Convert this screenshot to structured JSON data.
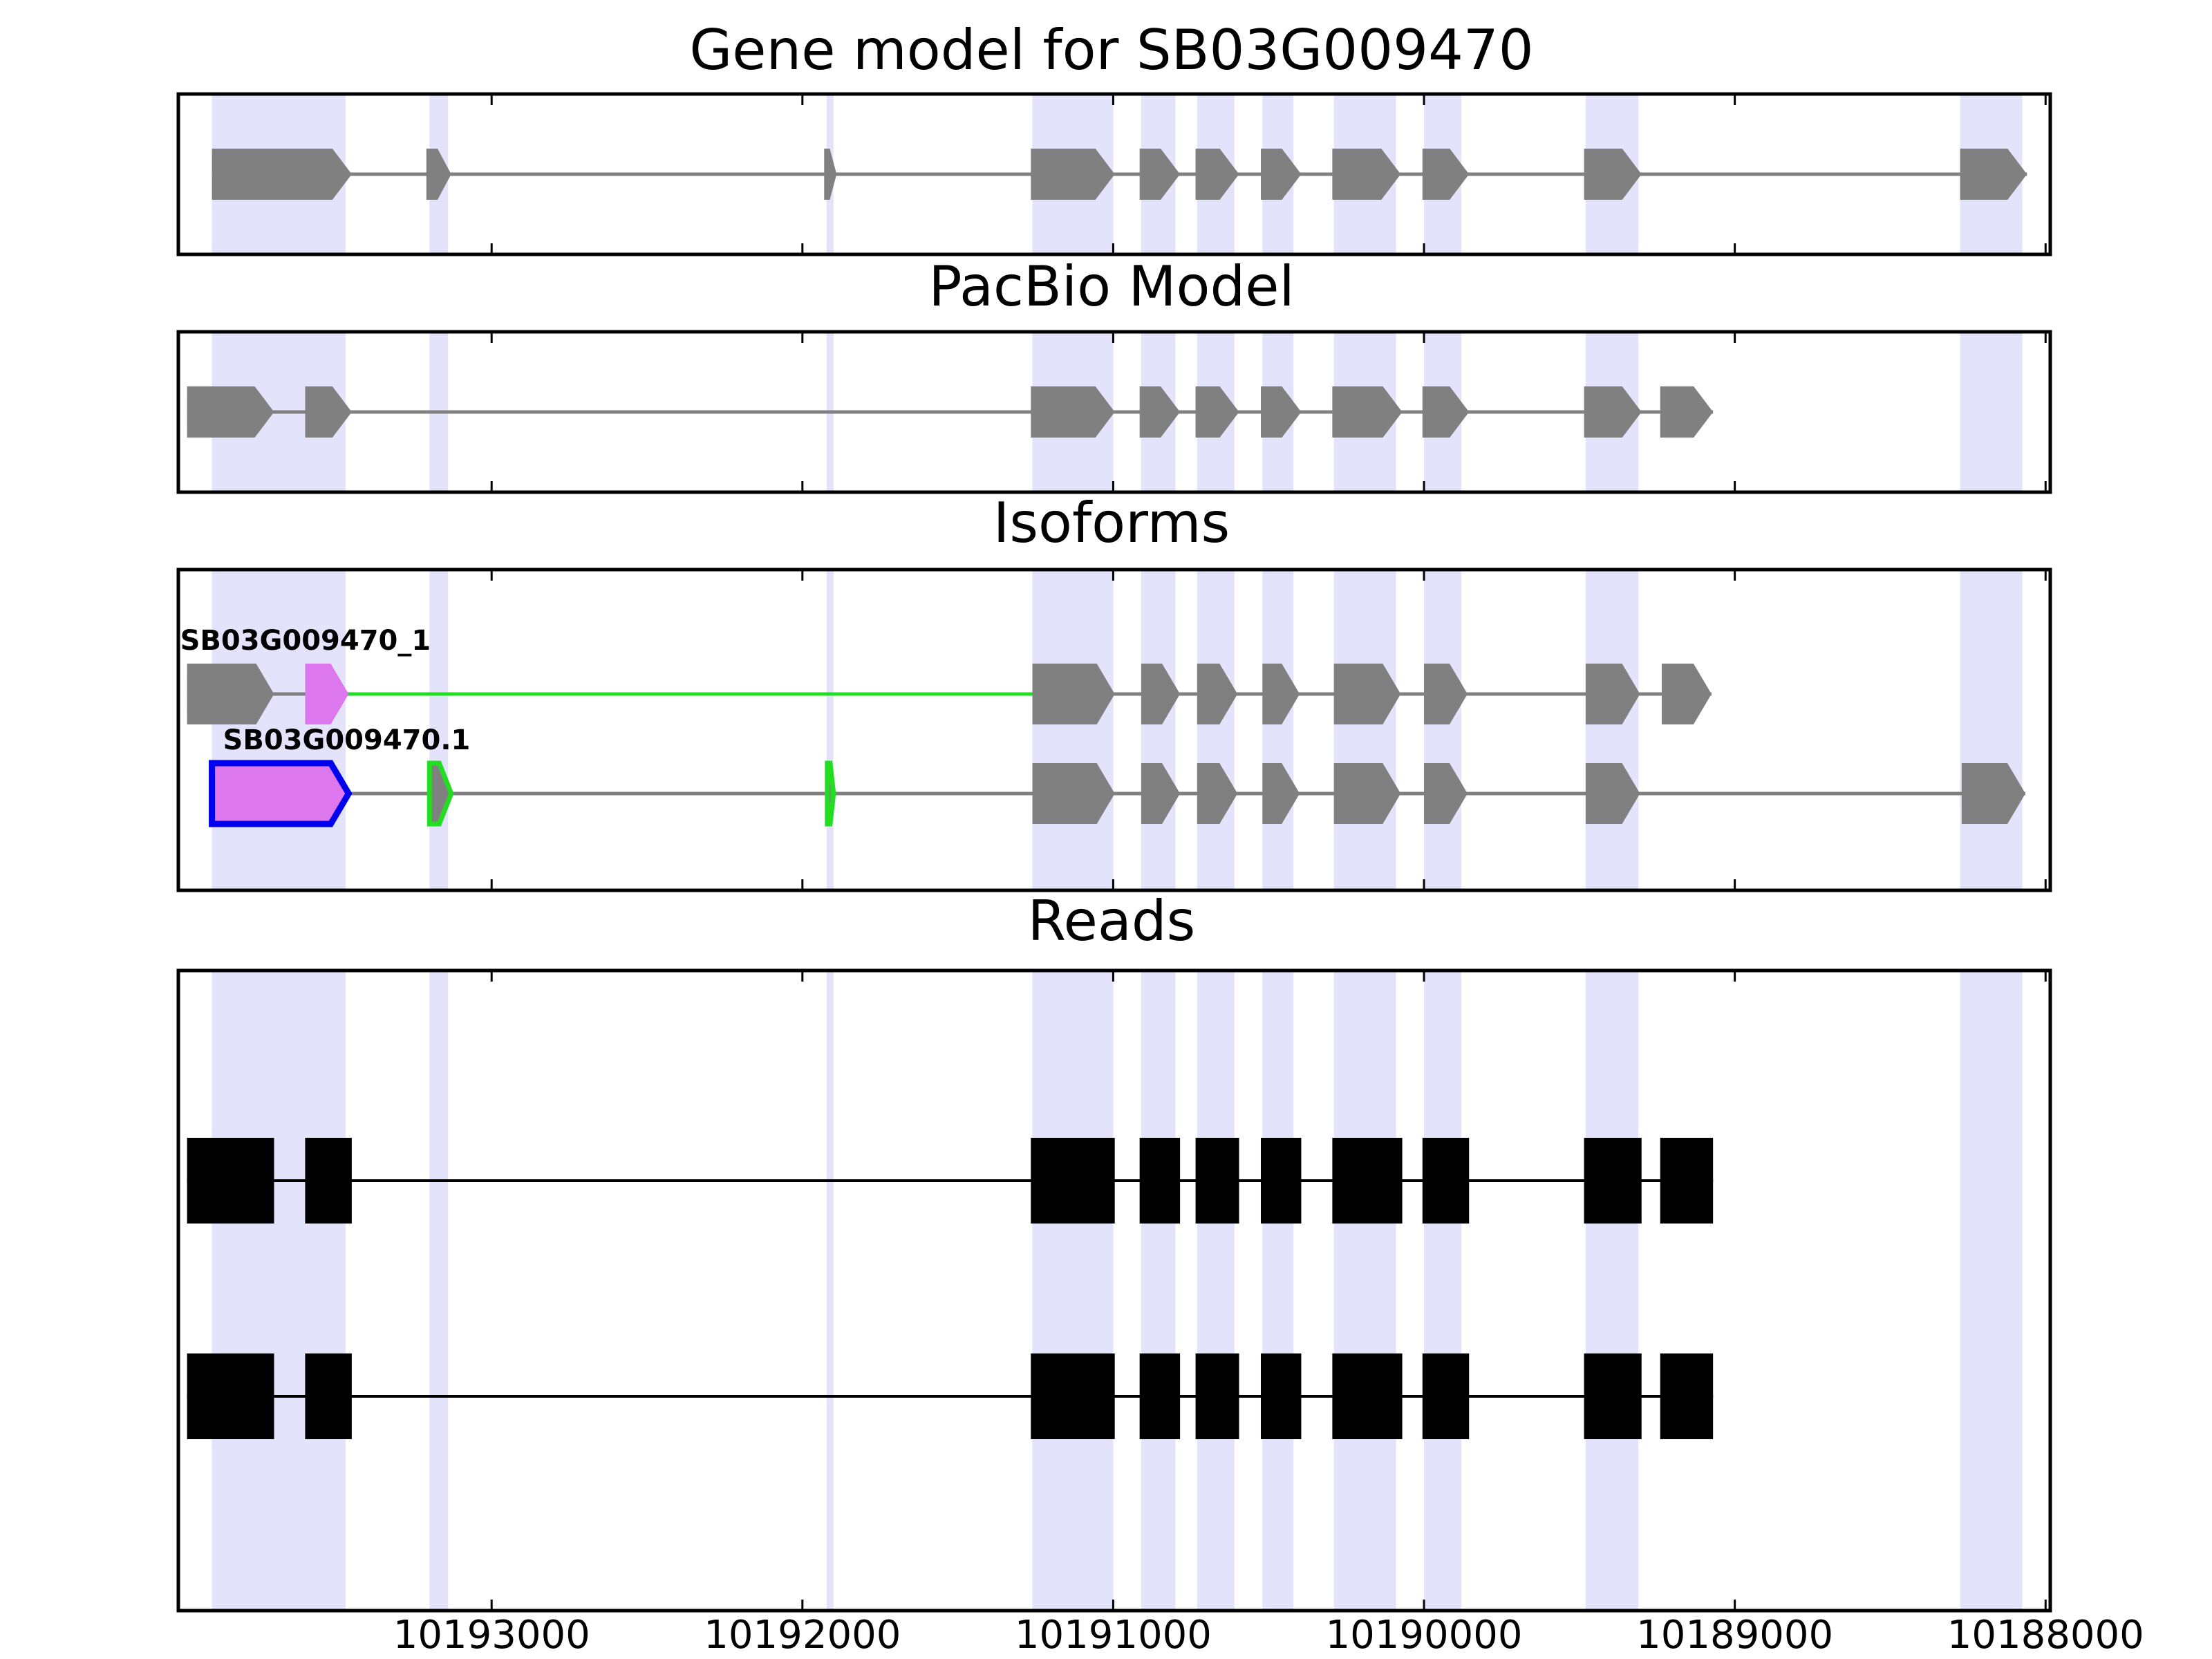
{
  "chart_data": {
    "type": "gene-track",
    "x_axis": {
      "lim": [
        10194008,
        10187985
      ],
      "reversed": true,
      "ticks": [
        10193000,
        10192000,
        10191000,
        10190000,
        10189000,
        10188000
      ],
      "tick_labels": [
        "10193000",
        "10192000",
        "10191000",
        "10190000",
        "10189000",
        "10188000"
      ]
    },
    "colors": {
      "highlight": "#e3e3fb",
      "exon": "#808080",
      "intron": "#808080",
      "read": "#000000",
      "alt_splice": "#22dd22",
      "alt_exon_fill": "#dd77ee",
      "alt_exon_outline": "#0000ee"
    },
    "highlight_regions": [
      [
        10193900,
        10193470
      ],
      [
        10193200,
        10193140
      ],
      [
        10191922,
        10191900
      ],
      [
        10191260,
        10191000
      ],
      [
        10190910,
        10190800
      ],
      [
        10190730,
        10190610
      ],
      [
        10190520,
        10190420
      ],
      [
        10190290,
        10190090
      ],
      [
        10190000,
        10189880
      ],
      [
        10189480,
        10189310
      ],
      [
        10188275,
        10188075
      ]
    ],
    "panels": [
      {
        "key": "gene_model",
        "title": "Gene model for SB03G009470",
        "tracks": [
          {
            "label": "",
            "exons": [
              {
                "start": 10193900,
                "end": 10193450
              },
              {
                "start": 10193210,
                "end": 10193130
              },
              {
                "start": 10191930,
                "end": 10191890
              },
              {
                "start": 10191265,
                "end": 10190995
              },
              {
                "start": 10190915,
                "end": 10190785
              },
              {
                "start": 10190735,
                "end": 10190595
              },
              {
                "start": 10190525,
                "end": 10190395
              },
              {
                "start": 10190295,
                "end": 10190075
              },
              {
                "start": 10190005,
                "end": 10189855
              },
              {
                "start": 10189485,
                "end": 10189300
              },
              {
                "start": 10188275,
                "end": 10188060
              }
            ]
          }
        ]
      },
      {
        "key": "pacbio_model",
        "title": "PacBio Model",
        "tracks": [
          {
            "label": "",
            "exons": [
              {
                "start": 10193980,
                "end": 10193700
              },
              {
                "start": 10193600,
                "end": 10193450
              },
              {
                "start": 10191265,
                "end": 10190995
              },
              {
                "start": 10190915,
                "end": 10190785
              },
              {
                "start": 10190735,
                "end": 10190595
              },
              {
                "start": 10190525,
                "end": 10190395
              },
              {
                "start": 10190295,
                "end": 10190070
              },
              {
                "start": 10190005,
                "end": 10189855
              },
              {
                "start": 10189485,
                "end": 10189300
              },
              {
                "start": 10189240,
                "end": 10189070
              }
            ]
          }
        ]
      },
      {
        "key": "isoforms",
        "title": "Isoforms",
        "tracks": [
          {
            "label": "SB03G009470_1",
            "exons": [
              {
                "start": 10193980,
                "end": 10193700
              },
              {
                "start": 10193600,
                "end": 10193460,
                "style": "alt"
              },
              {
                "start": 10191260,
                "end": 10190995
              },
              {
                "start": 10190910,
                "end": 10190785
              },
              {
                "start": 10190730,
                "end": 10190600
              },
              {
                "start": 10190520,
                "end": 10190400
              },
              {
                "start": 10190290,
                "end": 10190075
              },
              {
                "start": 10190000,
                "end": 10189860
              },
              {
                "start": 10189480,
                "end": 10189305
              },
              {
                "start": 10189235,
                "end": 10189075
              }
            ],
            "alt_introns": [
              [
                10193460,
                10191260
              ]
            ]
          },
          {
            "label": "SB03G009470.1",
            "exons": [
              {
                "start": 10193900,
                "end": 10193460,
                "style": "alt-outline"
              },
              {
                "start": 10193200,
                "end": 10193130,
                "style": "green"
              },
              {
                "start": 10191920,
                "end": 10191900,
                "style": "green"
              },
              {
                "start": 10191260,
                "end": 10190995
              },
              {
                "start": 10190910,
                "end": 10190785
              },
              {
                "start": 10190730,
                "end": 10190600
              },
              {
                "start": 10190520,
                "end": 10190400
              },
              {
                "start": 10190290,
                "end": 10190075
              },
              {
                "start": 10190000,
                "end": 10189860
              },
              {
                "start": 10189480,
                "end": 10189305
              },
              {
                "start": 10188270,
                "end": 10188065
              }
            ],
            "alt_introns": []
          }
        ]
      },
      {
        "key": "reads",
        "title": "Reads",
        "tracks": [
          {
            "label": "",
            "exons": [
              {
                "start": 10193980,
                "end": 10193700
              },
              {
                "start": 10193600,
                "end": 10193450
              },
              {
                "start": 10191265,
                "end": 10190995
              },
              {
                "start": 10190915,
                "end": 10190785
              },
              {
                "start": 10190735,
                "end": 10190595
              },
              {
                "start": 10190525,
                "end": 10190395
              },
              {
                "start": 10190295,
                "end": 10190070
              },
              {
                "start": 10190005,
                "end": 10189855
              },
              {
                "start": 10189485,
                "end": 10189300
              },
              {
                "start": 10189240,
                "end": 10189070
              }
            ]
          },
          {
            "label": "",
            "exons": [
              {
                "start": 10193980,
                "end": 10193700
              },
              {
                "start": 10193600,
                "end": 10193450
              },
              {
                "start": 10191265,
                "end": 10190995
              },
              {
                "start": 10190915,
                "end": 10190785
              },
              {
                "start": 10190735,
                "end": 10190595
              },
              {
                "start": 10190525,
                "end": 10190395
              },
              {
                "start": 10190295,
                "end": 10190070
              },
              {
                "start": 10190005,
                "end": 10189855
              },
              {
                "start": 10189485,
                "end": 10189300
              },
              {
                "start": 10189240,
                "end": 10189070
              }
            ]
          }
        ]
      }
    ]
  }
}
